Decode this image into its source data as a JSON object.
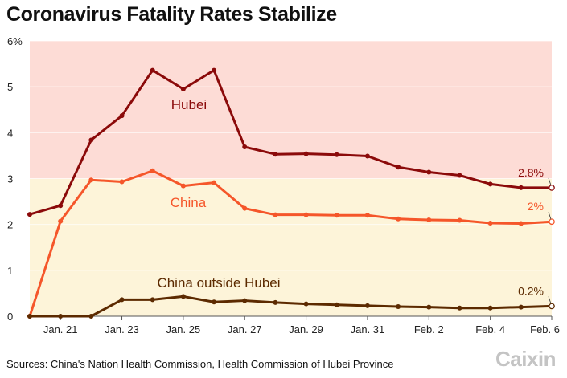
{
  "chart_data": {
    "type": "line",
    "title": "Coronavirus Fatality Rates Stabilize",
    "source": "Sources: China's Nation Health Commission, Health Commission of Hubei Province",
    "logo": "Caixin",
    "x": [
      "Jan. 20",
      "Jan. 21",
      "Jan. 22",
      "Jan. 23",
      "Jan. 24",
      "Jan. 25",
      "Jan. 26",
      "Jan. 27",
      "Jan. 28",
      "Jan. 29",
      "Jan. 30",
      "Jan. 31",
      "Feb. 1",
      "Feb. 2",
      "Feb. 3",
      "Feb. 4",
      "Feb. 5",
      "Feb. 6"
    ],
    "xticks": [
      "Jan. 21",
      "Jan. 23",
      "Jan. 25",
      "Jan. 27",
      "Jan. 29",
      "Jan. 31",
      "Feb. 2",
      "Feb. 4",
      "Feb. 6"
    ],
    "ylim": [
      0,
      6
    ],
    "yticks": [
      "0",
      "1",
      "2",
      "3",
      "4",
      "5",
      "6%"
    ],
    "background_bands": [
      {
        "from": 3,
        "to": 6,
        "color": "#fddcd6"
      },
      {
        "from": 0,
        "to": 3,
        "color": "#fdf4d9"
      }
    ],
    "series": [
      {
        "name": "Hubei",
        "color": "#8b0a0a",
        "end_label": "2.8%",
        "values": [
          2.22,
          2.41,
          3.84,
          4.37,
          5.36,
          4.95,
          5.36,
          3.69,
          3.53,
          3.54,
          3.52,
          3.49,
          3.25,
          3.14,
          3.07,
          2.88,
          2.8,
          2.8
        ]
      },
      {
        "name": "China",
        "color": "#f5562a",
        "end_label": "2%",
        "values": [
          0,
          2.07,
          2.97,
          2.93,
          3.17,
          2.84,
          2.91,
          2.35,
          2.21,
          2.21,
          2.2,
          2.2,
          2.12,
          2.1,
          2.09,
          2.03,
          2.02,
          2.06
        ]
      },
      {
        "name": "China outside Hubei",
        "color": "#5c2a00",
        "end_label": "0.2%",
        "values": [
          0,
          0,
          0,
          0.36,
          0.36,
          0.43,
          0.31,
          0.34,
          0.3,
          0.27,
          0.25,
          0.23,
          0.21,
          0.2,
          0.18,
          0.18,
          0.2,
          0.22
        ]
      }
    ]
  }
}
